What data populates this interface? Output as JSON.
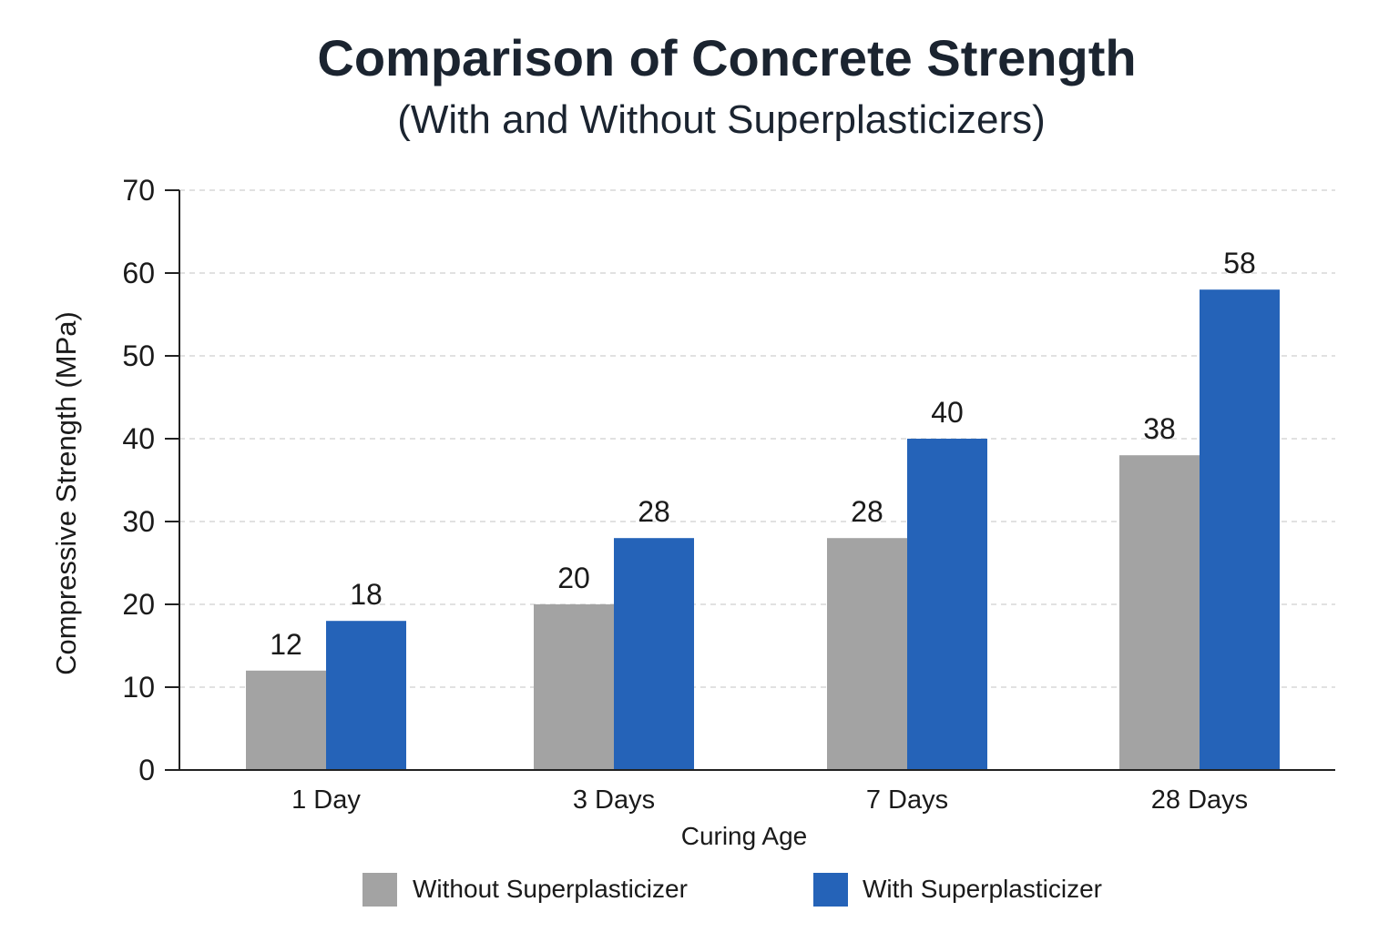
{
  "chart_data": {
    "type": "bar",
    "title": "Comparison of Concrete Strength",
    "subtitle": "(With and Without Superplasticizers)",
    "xlabel": "Curing Age",
    "ylabel": "Compressive Strength (MPa)",
    "categories": [
      "1 Day",
      "3 Days",
      "7 Days",
      "28 Days"
    ],
    "series": [
      {
        "name": "Without Superplasticizer",
        "values": [
          12,
          20,
          28,
          38
        ],
        "color": "#a3a3a3"
      },
      {
        "name": "With Superplasticizer",
        "values": [
          18,
          28,
          40,
          58
        ],
        "color": "#2563b8"
      }
    ],
    "ylim": [
      0,
      70
    ],
    "yticks": [
      0,
      10,
      20,
      30,
      40,
      50,
      60,
      70
    ],
    "grid": true,
    "grid_style": "dashed horizontal",
    "legend_position": "bottom-center",
    "data_labels": true
  }
}
